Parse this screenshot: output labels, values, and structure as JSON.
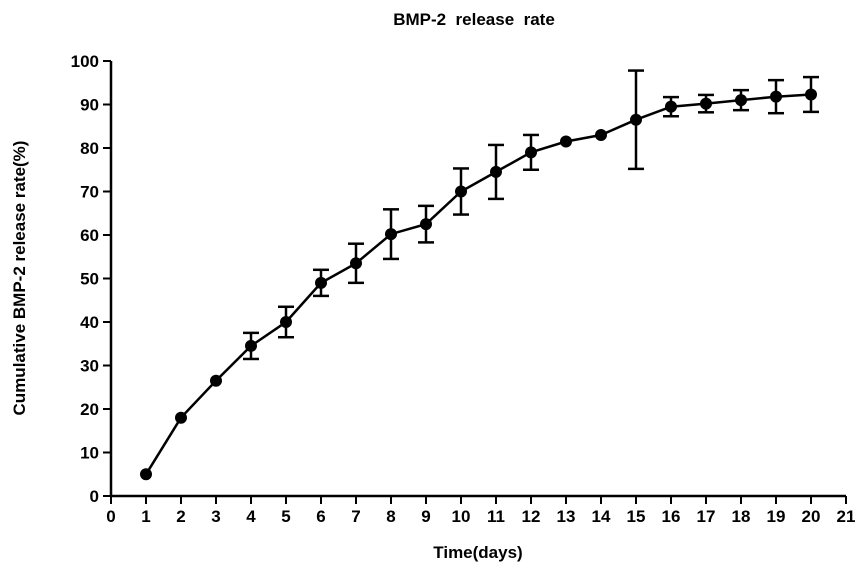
{
  "chart_data": {
    "type": "line",
    "title": "BMP-2  release  rate",
    "xlabel": "Time(days)",
    "ylabel": "Cumulative BMP-2 release rate(%)",
    "xlim": [
      0,
      21
    ],
    "ylim": [
      0,
      100
    ],
    "x_ticks": [
      0,
      1,
      2,
      3,
      4,
      5,
      6,
      7,
      8,
      9,
      10,
      11,
      12,
      13,
      14,
      15,
      16,
      17,
      18,
      19,
      20,
      21
    ],
    "y_ticks": [
      0,
      10,
      20,
      30,
      40,
      50,
      60,
      70,
      80,
      90,
      100
    ],
    "grid": false,
    "legend": "none",
    "series": [
      {
        "x": [
          1,
          2,
          3,
          4,
          5,
          6,
          7,
          8,
          9,
          10,
          11,
          12,
          13,
          14,
          15,
          16,
          17,
          18,
          19,
          20
        ],
        "values": [
          5,
          18,
          26.5,
          34.5,
          40,
          49,
          53.5,
          60.2,
          62.5,
          70,
          74.5,
          79,
          81.5,
          83,
          86.5,
          89.5,
          90.2,
          91,
          91.8,
          92.3
        ],
        "error": [
          0,
          0,
          0,
          3,
          3.5,
          3,
          4.5,
          5.7,
          4.2,
          5.3,
          6.2,
          4,
          0,
          0,
          11.3,
          2.2,
          2,
          2.3,
          3.8,
          4
        ]
      }
    ],
    "color": "#000000"
  }
}
